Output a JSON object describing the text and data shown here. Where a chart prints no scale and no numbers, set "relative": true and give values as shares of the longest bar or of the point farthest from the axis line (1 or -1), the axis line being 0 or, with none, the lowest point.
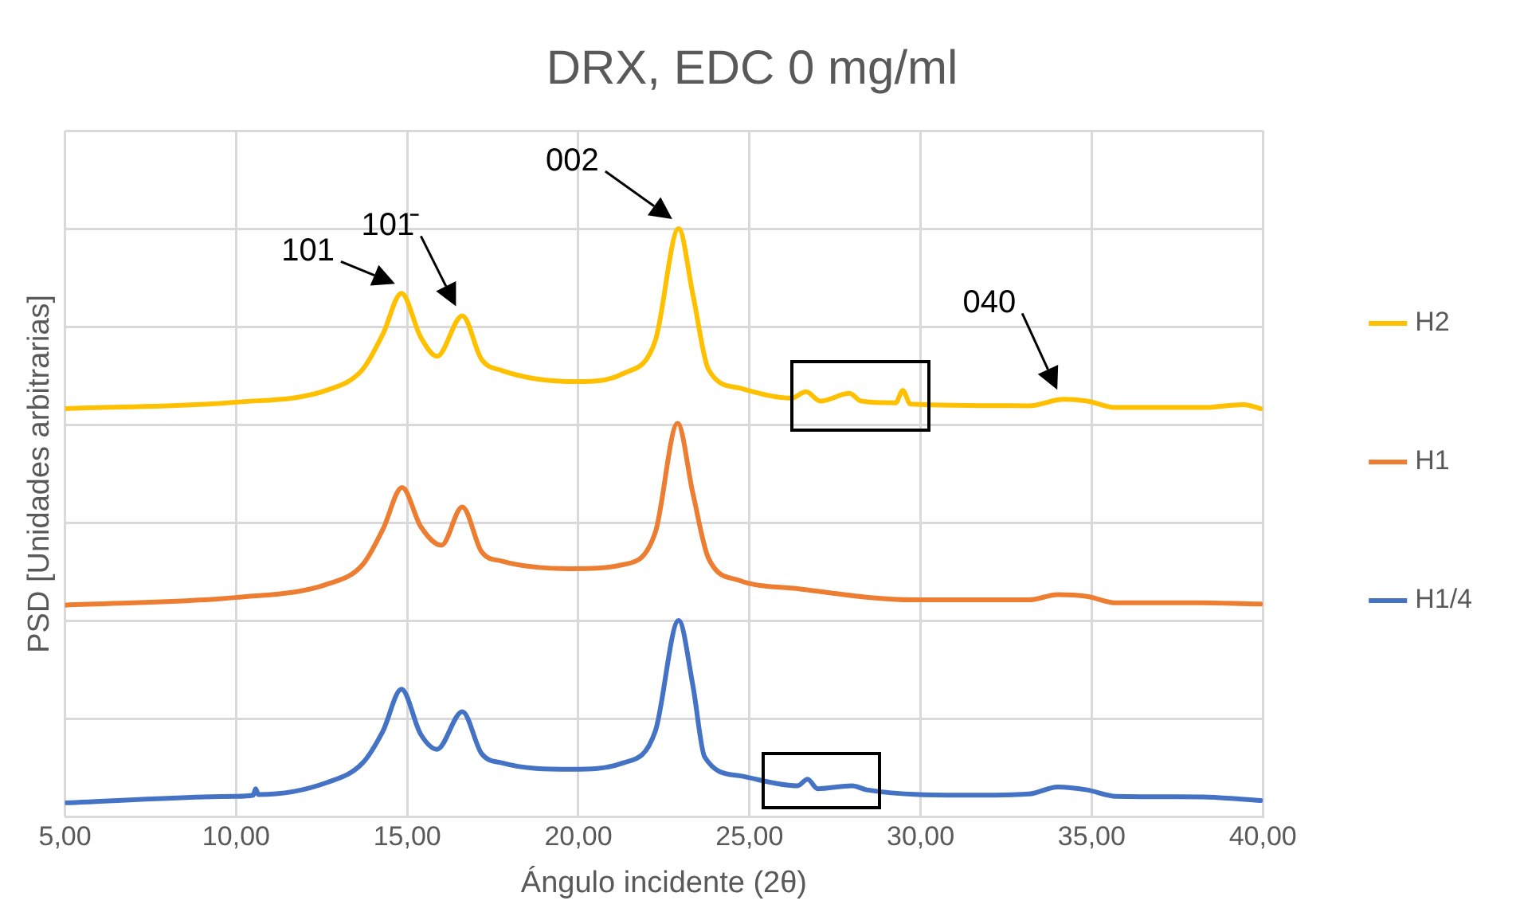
{
  "chart_data": {
    "type": "line",
    "title": "DRX, EDC 0 mg/ml",
    "xlabel": "Ángulo incidente (2θ)",
    "ylabel": "PSD [Unidades arbitrarias]",
    "relative": true,
    "xlim": [
      5,
      40
    ],
    "xticks": [
      {
        "value": 5,
        "label": "5,00"
      },
      {
        "value": 10,
        "label": "10,00"
      },
      {
        "value": 15,
        "label": "15,00"
      },
      {
        "value": 20,
        "label": "20,00"
      },
      {
        "value": 25,
        "label": "25,00"
      },
      {
        "value": 30,
        "label": "30,00"
      },
      {
        "value": 35,
        "label": "35,00"
      },
      {
        "value": 40,
        "label": "40,00"
      }
    ],
    "grid": true,
    "legend": "right",
    "marker": "none",
    "line_style": "solid",
    "annotations": [
      {
        "text": "101",
        "x": 14.83,
        "y": 0.89
      },
      {
        "text": "101̄",
        "x": 16.61,
        "y": 0.852
      },
      {
        "text": "002",
        "x": 22.93,
        "y": 1.0
      },
      {
        "text": "040",
        "x": 34.18,
        "y": 0.71
      }
    ],
    "series": [
      {
        "name": "H2",
        "color": "#ffc000",
        "x": [
          5.0,
          9.98,
          12.68,
          13.7,
          14.29,
          14.83,
          15.39,
          15.87,
          16.61,
          17.17,
          17.76,
          19.96,
          21.32,
          22.25,
          22.93,
          23.35,
          23.8,
          24.71,
          26.23,
          26.65,
          27.07,
          27.92,
          28.26,
          29.27,
          29.48,
          29.7,
          33.17,
          34.18,
          34.86,
          35.71,
          38.25,
          39.44,
          39.94
        ],
        "values": [
          0.694,
          0.705,
          0.726,
          0.761,
          0.821,
          0.89,
          0.816,
          0.783,
          0.852,
          0.778,
          0.759,
          0.74,
          0.754,
          0.81,
          1.0,
          0.887,
          0.761,
          0.729,
          0.712,
          0.723,
          0.707,
          0.72,
          0.707,
          0.704,
          0.725,
          0.702,
          0.699,
          0.71,
          0.707,
          0.696,
          0.696,
          0.701,
          0.694
        ]
      },
      {
        "name": "H1",
        "color": "#ed7d31",
        "x": [
          5.0,
          9.98,
          12.68,
          13.7,
          14.29,
          14.85,
          15.39,
          16.0,
          16.61,
          17.17,
          17.76,
          19.79,
          21.32,
          22.25,
          22.9,
          23.35,
          23.8,
          24.71,
          26.4,
          29.78,
          33.17,
          34.01,
          34.86,
          35.71,
          38.25,
          39.94
        ],
        "values": [
          0.36,
          0.373,
          0.396,
          0.429,
          0.489,
          0.56,
          0.494,
          0.462,
          0.527,
          0.451,
          0.435,
          0.422,
          0.429,
          0.484,
          0.669,
          0.549,
          0.44,
          0.402,
          0.388,
          0.369,
          0.369,
          0.378,
          0.375,
          0.364,
          0.364,
          0.362
        ]
      },
      {
        "name": "H1/4",
        "color": "#4472c4",
        "x": [
          5.0,
          9.98,
          10.5,
          10.57,
          10.65,
          12.68,
          13.7,
          14.29,
          14.83,
          15.39,
          15.87,
          16.61,
          17.17,
          17.76,
          19.79,
          21.32,
          22.25,
          22.93,
          23.35,
          23.69,
          24.71,
          26.4,
          26.7,
          26.99,
          28.0,
          28.43,
          31.47,
          33.17,
          34.01,
          34.86,
          35.71,
          38.25,
          39.94
        ],
        "values": [
          0.024,
          0.035,
          0.037,
          0.048,
          0.038,
          0.059,
          0.092,
          0.146,
          0.217,
          0.141,
          0.115,
          0.179,
          0.108,
          0.092,
          0.081,
          0.092,
          0.146,
          0.334,
          0.222,
          0.102,
          0.07,
          0.053,
          0.064,
          0.048,
          0.053,
          0.046,
          0.037,
          0.039,
          0.051,
          0.046,
          0.035,
          0.034,
          0.028
        ]
      }
    ]
  }
}
